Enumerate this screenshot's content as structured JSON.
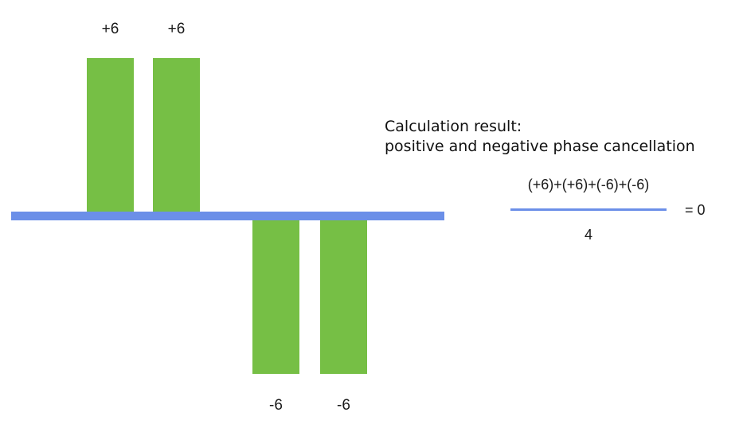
{
  "chart_data": {
    "type": "bar",
    "categories": [
      "",
      "",
      "",
      ""
    ],
    "values": [
      6,
      6,
      -6,
      -6
    ],
    "data_labels": [
      "+6",
      "+6",
      "-6",
      "-6"
    ],
    "ylim": [
      -6,
      6
    ],
    "title": "",
    "xlabel": "",
    "ylabel": "",
    "grid": false,
    "colors": {
      "bar": "#76bf45",
      "baseline": "#6b8fe8"
    }
  },
  "caption": {
    "line1": "Calculation result:",
    "line2": "positive and negative phase cancellation"
  },
  "formula": {
    "numerator": "(+6)+(+6)+(-6)+(-6)",
    "denominator": "4",
    "result": "= 0",
    "line_color": "#6b8fe8"
  }
}
